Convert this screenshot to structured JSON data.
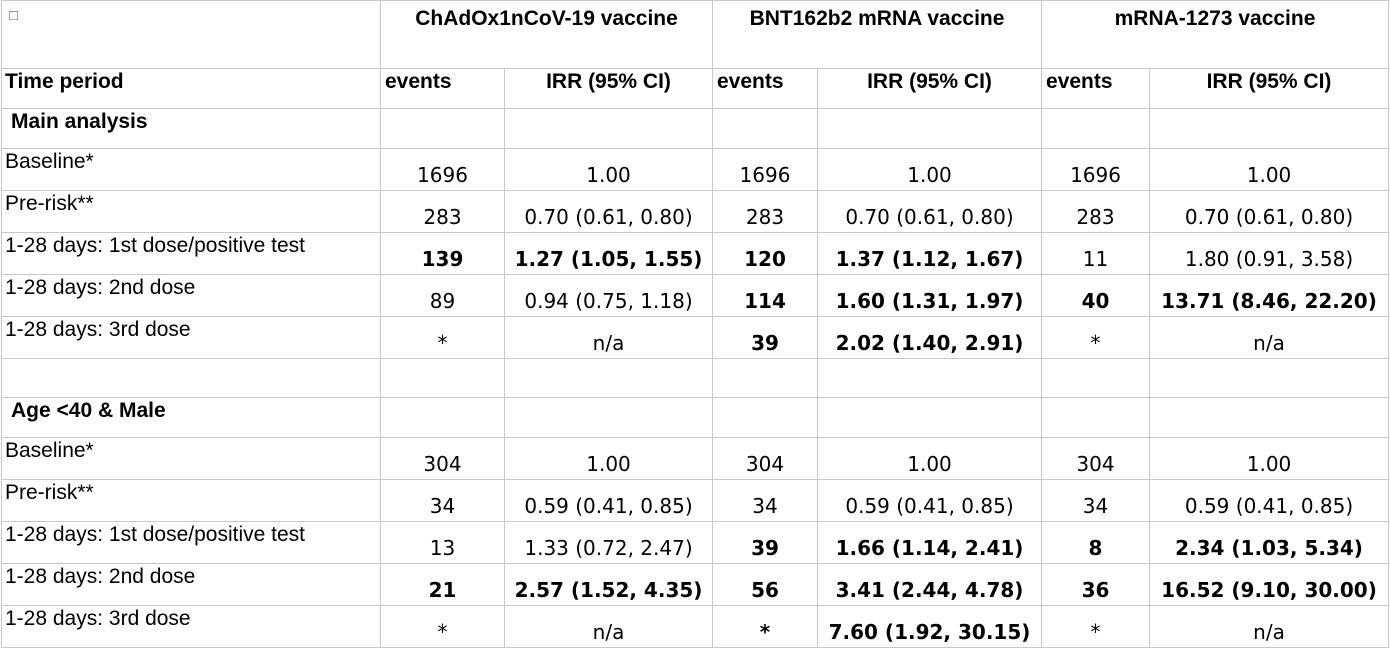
{
  "header": {
    "corner": "",
    "vaccines": [
      "ChAdOx1nCoV-19 vaccine",
      "BNT162b2 mRNA vaccine",
      "mRNA-1273 vaccine"
    ],
    "time_period": "Time period",
    "events": "events",
    "irr": "IRR (95% CI)"
  },
  "sections": [
    {
      "title": "Main analysis",
      "rows": [
        {
          "label": "Baseline*",
          "cells": [
            {
              "v": "1696",
              "b": false
            },
            {
              "v": "1.00",
              "b": false
            },
            {
              "v": "1696",
              "b": false
            },
            {
              "v": "1.00",
              "b": false
            },
            {
              "v": "1696",
              "b": false
            },
            {
              "v": "1.00",
              "b": false
            }
          ]
        },
        {
          "label": "Pre-risk**",
          "cells": [
            {
              "v": "283",
              "b": false
            },
            {
              "v": "0.70 (0.61, 0.80)",
              "b": false
            },
            {
              "v": "283",
              "b": false
            },
            {
              "v": "0.70 (0.61, 0.80)",
              "b": false
            },
            {
              "v": "283",
              "b": false
            },
            {
              "v": "0.70 (0.61, 0.80)",
              "b": false
            }
          ]
        },
        {
          "label": "1-28 days: 1st dose/positive test",
          "cells": [
            {
              "v": "139",
              "b": true
            },
            {
              "v": "1.27 (1.05, 1.55)",
              "b": true
            },
            {
              "v": "120",
              "b": true
            },
            {
              "v": "1.37 (1.12, 1.67)",
              "b": true
            },
            {
              "v": "11",
              "b": false
            },
            {
              "v": "1.80 (0.91, 3.58)",
              "b": false
            }
          ]
        },
        {
          "label": "1-28 days: 2nd dose",
          "cells": [
            {
              "v": "89",
              "b": false
            },
            {
              "v": "0.94 (0.75, 1.18)",
              "b": false
            },
            {
              "v": "114",
              "b": true
            },
            {
              "v": "1.60 (1.31, 1.97)",
              "b": true
            },
            {
              "v": "40",
              "b": true
            },
            {
              "v": "13.71 (8.46, 22.20)",
              "b": true
            }
          ]
        },
        {
          "label": "1-28 days: 3rd dose",
          "cells": [
            {
              "v": "*",
              "b": false
            },
            {
              "v": "n/a",
              "b": false
            },
            {
              "v": "39",
              "b": true
            },
            {
              "v": "2.02 (1.40, 2.91)",
              "b": true
            },
            {
              "v": "*",
              "b": false
            },
            {
              "v": "n/a",
              "b": false
            }
          ]
        }
      ]
    },
    {
      "title": "Age <40 & Male",
      "rows": [
        {
          "label": "Baseline*",
          "cells": [
            {
              "v": "304",
              "b": false
            },
            {
              "v": "1.00",
              "b": false
            },
            {
              "v": "304",
              "b": false
            },
            {
              "v": "1.00",
              "b": false
            },
            {
              "v": "304",
              "b": false
            },
            {
              "v": "1.00",
              "b": false
            }
          ]
        },
        {
          "label": "Pre-risk**",
          "cells": [
            {
              "v": "34",
              "b": false
            },
            {
              "v": "0.59 (0.41, 0.85)",
              "b": false
            },
            {
              "v": "34",
              "b": false
            },
            {
              "v": "0.59 (0.41, 0.85)",
              "b": false
            },
            {
              "v": "34",
              "b": false
            },
            {
              "v": "0.59 (0.41, 0.85)",
              "b": false
            }
          ]
        },
        {
          "label": "1-28 days: 1st dose/positive test",
          "cells": [
            {
              "v": "13",
              "b": false
            },
            {
              "v": "1.33 (0.72, 2.47)",
              "b": false
            },
            {
              "v": "39",
              "b": true
            },
            {
              "v": "1.66 (1.14, 2.41)",
              "b": true
            },
            {
              "v": "8",
              "b": true
            },
            {
              "v": "2.34 (1.03, 5.34)",
              "b": true
            }
          ]
        },
        {
          "label": "1-28 days: 2nd dose",
          "cells": [
            {
              "v": "21",
              "b": true
            },
            {
              "v": "2.57 (1.52, 4.35)",
              "b": true
            },
            {
              "v": "56",
              "b": true
            },
            {
              "v": "3.41 (2.44, 4.78)",
              "b": true
            },
            {
              "v": "36",
              "b": true
            },
            {
              "v": "16.52 (9.10, 30.00)",
              "b": true
            }
          ]
        },
        {
          "label": "1-28 days: 3rd dose",
          "cells": [
            {
              "v": "*",
              "b": false
            },
            {
              "v": "n/a",
              "b": false
            },
            {
              "v": "*",
              "b": true
            },
            {
              "v": "7.60 (1.92, 30.15)",
              "b": true
            },
            {
              "v": "*",
              "b": false
            },
            {
              "v": "n/a",
              "b": false
            }
          ]
        }
      ]
    }
  ]
}
